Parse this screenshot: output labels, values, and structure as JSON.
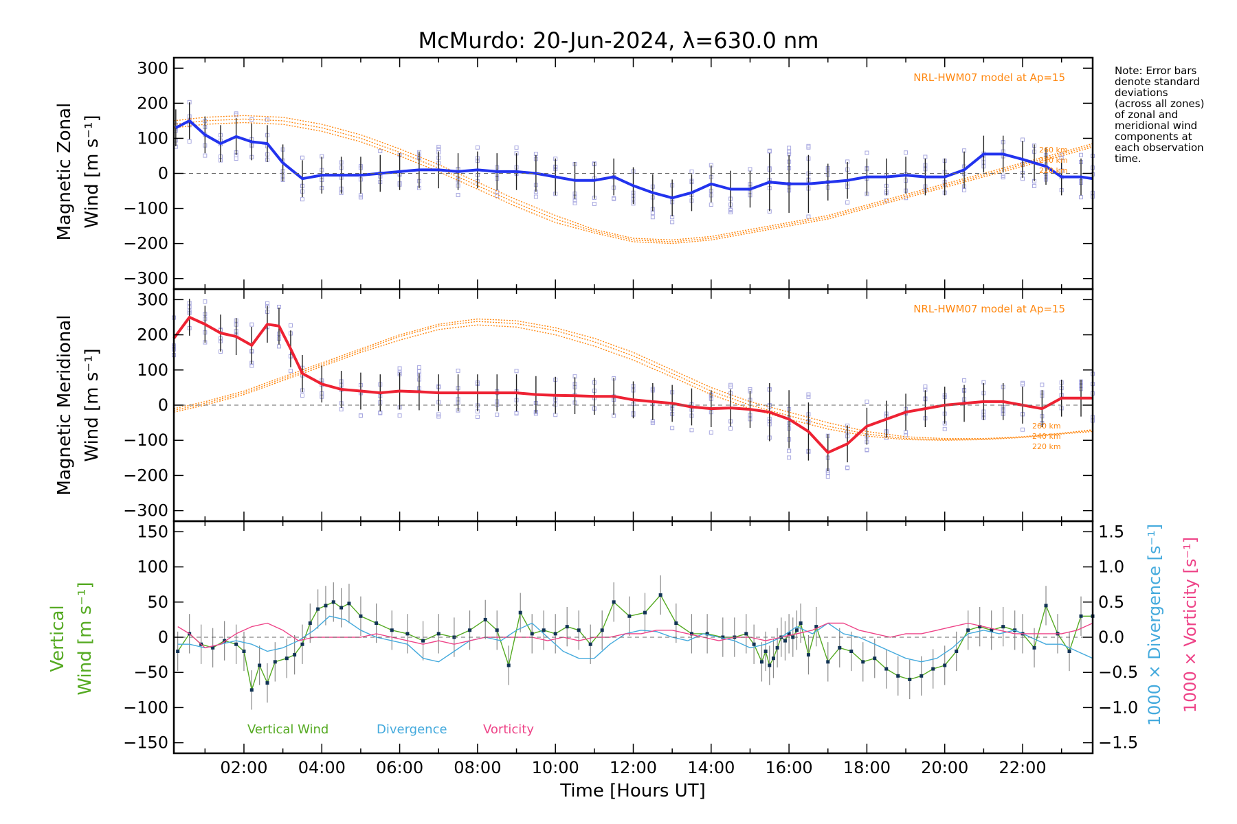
{
  "title": "McMurdo: 20-Jun-2024, λ=630.0 nm",
  "note": [
    "Note: Error bars",
    "denote standard",
    "deviations",
    "(across all zones)",
    "of zonal and",
    "meridional wind",
    "components at",
    "each observation",
    "time."
  ],
  "model_label": "NRL-HWM07 model at Ap=15",
  "model_altitudes": [
    "260 km",
    "240 km",
    "220 km"
  ],
  "xlabel": "Time [Hours UT]",
  "x_ticks": [
    "02:00",
    "04:00",
    "06:00",
    "08:00",
    "10:00",
    "12:00",
    "14:00",
    "16:00",
    "18:00",
    "20:00",
    "22:00"
  ],
  "colors": {
    "zonal": "#2233ee",
    "meridional": "#ee2233",
    "vertical": "#55aa22",
    "divergence": "#44aadd",
    "vorticity": "#ee4488",
    "model": "#ff8811",
    "scatter": "#a8a8e0",
    "errorbar": "#222222"
  },
  "chart_data": [
    {
      "type": "line",
      "panel": "zonal",
      "ylabel_line1": "Magnetic Zonal",
      "ylabel_line2": "Wind [m s⁻¹]",
      "ylim": [
        -330,
        330
      ],
      "xlim_hours": [
        0.2,
        23.8
      ],
      "y_ticks": [
        "300",
        "200",
        "100",
        "0",
        "−100",
        "−200",
        "−300"
      ],
      "series": [
        {
          "name": "Zonal",
          "x": [
            0.25,
            0.6,
            1.0,
            1.4,
            1.8,
            2.2,
            2.6,
            3.0,
            3.5,
            4.0,
            4.5,
            5.0,
            5.5,
            6.0,
            6.5,
            7.0,
            7.5,
            8.0,
            8.5,
            9.0,
            9.5,
            10.0,
            10.5,
            11.0,
            11.5,
            12.0,
            12.5,
            13.0,
            13.5,
            14.0,
            14.5,
            15.0,
            15.5,
            16.0,
            16.5,
            17.0,
            17.5,
            18.0,
            18.5,
            19.0,
            19.5,
            20.0,
            20.5,
            21.0,
            21.5,
            22.0,
            22.3,
            22.6,
            23.0,
            23.5,
            23.8
          ],
          "y": [
            130,
            150,
            110,
            85,
            105,
            90,
            85,
            30,
            -15,
            -5,
            -5,
            -5,
            0,
            5,
            10,
            10,
            5,
            10,
            5,
            5,
            0,
            -10,
            -20,
            -20,
            -10,
            -35,
            -55,
            -70,
            -55,
            -30,
            -45,
            -45,
            -25,
            -30,
            -30,
            -25,
            -20,
            -10,
            -10,
            -5,
            -10,
            -10,
            10,
            55,
            55,
            40,
            30,
            20,
            -10,
            -10,
            -15
          ]
        }
      ],
      "model_curves": [
        {
          "name": "260 km",
          "x": [
            0.2,
            1,
            2,
            3,
            4,
            5,
            6,
            7,
            8,
            9,
            10,
            11,
            12,
            13,
            14,
            15,
            16,
            17,
            18,
            19,
            20,
            21,
            22,
            23,
            23.8
          ],
          "y": [
            150,
            160,
            165,
            160,
            140,
            110,
            70,
            25,
            -25,
            -75,
            -120,
            -160,
            -185,
            -190,
            -180,
            -160,
            -140,
            -120,
            -90,
            -60,
            -30,
            0,
            30,
            60,
            85
          ]
        },
        {
          "name": "240 km",
          "x": [
            0.2,
            1,
            2,
            3,
            4,
            5,
            6,
            7,
            8,
            9,
            10,
            11,
            12,
            13,
            14,
            15,
            16,
            17,
            18,
            19,
            20,
            21,
            22,
            23,
            23.8
          ],
          "y": [
            140,
            150,
            155,
            150,
            130,
            100,
            60,
            15,
            -35,
            -85,
            -130,
            -165,
            -190,
            -195,
            -185,
            -165,
            -145,
            -125,
            -95,
            -65,
            -35,
            -5,
            25,
            55,
            80
          ]
        },
        {
          "name": "220 km",
          "x": [
            0.2,
            1,
            2,
            3,
            4,
            5,
            6,
            7,
            8,
            9,
            10,
            11,
            12,
            13,
            14,
            15,
            16,
            17,
            18,
            19,
            20,
            21,
            22,
            23,
            23.8
          ],
          "y": [
            130,
            140,
            145,
            140,
            120,
            90,
            50,
            5,
            -45,
            -95,
            -140,
            -170,
            -195,
            -200,
            -190,
            -170,
            -150,
            -130,
            -100,
            -70,
            -40,
            -10,
            20,
            50,
            75
          ]
        }
      ]
    },
    {
      "type": "line",
      "panel": "meridional",
      "ylabel_line1": "Magnetic Meridional",
      "ylabel_line2": "Wind [m s⁻¹]",
      "ylim": [
        -330,
        330
      ],
      "xlim_hours": [
        0.2,
        23.8
      ],
      "y_ticks": [
        "300",
        "200",
        "100",
        "0",
        "−100",
        "−200",
        "−300"
      ],
      "series": [
        {
          "name": "Meridional",
          "x": [
            0.2,
            0.6,
            1.0,
            1.4,
            1.8,
            2.2,
            2.6,
            2.9,
            3.2,
            3.5,
            4.0,
            4.5,
            5.0,
            5.5,
            6.0,
            6.5,
            7.0,
            7.5,
            8.0,
            8.5,
            9.0,
            9.5,
            10.0,
            10.5,
            11.0,
            11.5,
            12.0,
            12.5,
            13.0,
            13.5,
            14.0,
            14.5,
            15.0,
            15.5,
            16.0,
            16.5,
            17.0,
            17.5,
            18.0,
            18.5,
            19.0,
            19.5,
            20.0,
            20.5,
            21.0,
            21.5,
            22.0,
            22.5,
            23.0,
            23.5,
            23.8
          ],
          "y": [
            190,
            250,
            230,
            205,
            195,
            170,
            230,
            225,
            160,
            90,
            60,
            45,
            40,
            35,
            40,
            38,
            35,
            35,
            35,
            35,
            35,
            30,
            28,
            27,
            25,
            25,
            15,
            10,
            5,
            -5,
            -10,
            -8,
            -12,
            -20,
            -40,
            -75,
            -135,
            -110,
            -60,
            -40,
            -20,
            -10,
            0,
            5,
            10,
            10,
            0,
            -10,
            20,
            20,
            20
          ]
        }
      ],
      "model_curves": [
        {
          "name": "260 km",
          "x": [
            0.2,
            1,
            2,
            3,
            4,
            5,
            6,
            7,
            8,
            9,
            10,
            11,
            12,
            13,
            14,
            15,
            16,
            17,
            18,
            19,
            20,
            21,
            22,
            23,
            23.8
          ],
          "y": [
            -10,
            10,
            40,
            80,
            120,
            160,
            200,
            230,
            245,
            240,
            220,
            190,
            150,
            100,
            50,
            10,
            -20,
            -50,
            -75,
            -90,
            -95,
            -95,
            -90,
            -80,
            -70
          ]
        },
        {
          "name": "240 km",
          "x": [
            0.2,
            1,
            2,
            3,
            4,
            5,
            6,
            7,
            8,
            9,
            10,
            11,
            12,
            13,
            14,
            15,
            16,
            17,
            18,
            19,
            20,
            21,
            22,
            23,
            23.8
          ],
          "y": [
            -15,
            5,
            35,
            75,
            115,
            155,
            195,
            225,
            238,
            232,
            212,
            180,
            140,
            90,
            40,
            0,
            -30,
            -60,
            -82,
            -95,
            -98,
            -96,
            -90,
            -80,
            -72
          ]
        },
        {
          "name": "220 km",
          "x": [
            0.2,
            1,
            2,
            3,
            4,
            5,
            6,
            7,
            8,
            9,
            10,
            11,
            12,
            13,
            14,
            15,
            16,
            17,
            18,
            19,
            20,
            21,
            22,
            23,
            23.8
          ],
          "y": [
            -20,
            0,
            30,
            70,
            110,
            150,
            185,
            215,
            228,
            222,
            200,
            168,
            128,
            80,
            30,
            -10,
            -40,
            -68,
            -88,
            -98,
            -100,
            -98,
            -92,
            -82,
            -75
          ]
        }
      ]
    },
    {
      "type": "line",
      "panel": "vertical",
      "ylabel_line1": "Vertical",
      "ylabel_line2": "Wind [m s⁻¹]",
      "ylim": [
        -165,
        165
      ],
      "xlim_hours": [
        0.2,
        23.8
      ],
      "y_ticks": [
        "150",
        "100",
        "50",
        "0",
        "−50",
        "−100",
        "−150"
      ],
      "right_axis": {
        "ylim": [
          -1.65,
          1.65
        ],
        "ticks": [
          "1.5",
          "1.0",
          "0.5",
          "0.0",
          "−0.5",
          "−1.0",
          "−1.5"
        ],
        "label_divergence": "1000 × Divergence [s⁻¹]",
        "label_vorticity": "1000 × Vorticity [s⁻¹]"
      },
      "legend": [
        "Vertical Wind",
        "Divergence",
        "Vorticity"
      ],
      "series": [
        {
          "name": "Vertical Wind",
          "x": [
            0.3,
            0.6,
            0.9,
            1.2,
            1.5,
            1.8,
            2.0,
            2.2,
            2.4,
            2.6,
            2.8,
            3.1,
            3.3,
            3.5,
            3.7,
            3.9,
            4.1,
            4.3,
            4.5,
            4.7,
            5.0,
            5.4,
            5.8,
            6.2,
            6.6,
            7.0,
            7.4,
            7.8,
            8.2,
            8.5,
            8.8,
            9.1,
            9.4,
            9.7,
            10.0,
            10.3,
            10.6,
            10.9,
            11.2,
            11.5,
            11.9,
            12.3,
            12.7,
            13.1,
            13.5,
            13.9,
            14.3,
            14.6,
            14.9,
            15.1,
            15.3,
            15.4,
            15.5,
            15.6,
            15.7,
            15.8,
            15.9,
            16.0,
            16.1,
            16.2,
            16.3,
            16.5,
            16.7,
            17.0,
            17.3,
            17.6,
            17.9,
            18.2,
            18.5,
            18.8,
            19.1,
            19.4,
            19.7,
            20.0,
            20.3,
            20.6,
            20.9,
            21.2,
            21.5,
            21.8,
            22.0,
            22.3,
            22.6,
            22.9,
            23.2,
            23.5,
            23.8
          ],
          "y": [
            -20,
            5,
            -10,
            -15,
            -5,
            -10,
            -20,
            -75,
            -40,
            -65,
            -35,
            -30,
            -25,
            -10,
            20,
            40,
            45,
            50,
            42,
            48,
            30,
            20,
            10,
            5,
            -5,
            5,
            0,
            10,
            25,
            10,
            -40,
            35,
            5,
            10,
            5,
            15,
            10,
            -10,
            10,
            50,
            30,
            35,
            60,
            20,
            5,
            5,
            0,
            0,
            5,
            -10,
            -35,
            -20,
            -40,
            -30,
            -15,
            0,
            -5,
            5,
            0,
            10,
            20,
            -25,
            15,
            -35,
            -15,
            -20,
            -35,
            -30,
            -45,
            -55,
            -60,
            -55,
            -45,
            -40,
            -20,
            10,
            15,
            10,
            15,
            10,
            5,
            -15,
            45,
            5,
            -20,
            30,
            30
          ]
        },
        {
          "name": "Divergence",
          "x": [
            0.3,
            0.6,
            1.0,
            1.4,
            1.8,
            2.2,
            2.6,
            3.0,
            3.4,
            3.8,
            4.2,
            4.6,
            5.0,
            5.4,
            5.8,
            6.2,
            6.6,
            7.0,
            7.4,
            7.8,
            8.2,
            8.6,
            9.0,
            9.4,
            9.8,
            10.2,
            10.6,
            11.0,
            11.4,
            11.8,
            12.2,
            12.6,
            13.0,
            13.4,
            13.8,
            14.2,
            14.6,
            15.0,
            15.4,
            15.8,
            16.2,
            16.6,
            17.0,
            17.4,
            17.8,
            18.2,
            18.6,
            19.0,
            19.4,
            19.8,
            20.2,
            20.6,
            21.0,
            21.4,
            21.8,
            22.2,
            22.6,
            23.0,
            23.4,
            23.8
          ],
          "y": [
            -0.1,
            -0.1,
            -0.15,
            -0.1,
            -0.05,
            -0.1,
            -0.2,
            -0.15,
            -0.05,
            0.1,
            0.3,
            0.25,
            0.1,
            0.0,
            -0.05,
            -0.1,
            -0.3,
            -0.35,
            -0.2,
            -0.05,
            0.0,
            -0.05,
            0.1,
            0.2,
            0.0,
            -0.2,
            -0.3,
            -0.3,
            -0.1,
            0.05,
            0.1,
            0.08,
            0.0,
            -0.05,
            0.05,
            0.0,
            -0.05,
            -0.15,
            -0.1,
            0.0,
            0.15,
            0.05,
            0.2,
            0.05,
            0.0,
            -0.1,
            -0.2,
            -0.3,
            -0.35,
            -0.3,
            -0.15,
            0.05,
            0.1,
            0.05,
            0.1,
            0.0,
            -0.1,
            -0.1,
            -0.2,
            -0.3
          ]
        },
        {
          "name": "Vorticity",
          "x": [
            0.3,
            0.6,
            1.0,
            1.4,
            1.8,
            2.2,
            2.6,
            3.0,
            3.4,
            3.8,
            4.2,
            4.6,
            5.0,
            5.4,
            5.8,
            6.2,
            6.6,
            7.0,
            7.4,
            7.8,
            8.2,
            8.6,
            9.0,
            9.4,
            9.8,
            10.2,
            10.6,
            11.0,
            11.4,
            11.8,
            12.2,
            12.6,
            13.0,
            13.4,
            13.8,
            14.2,
            14.6,
            15.0,
            15.4,
            15.8,
            16.2,
            16.6,
            17.0,
            17.4,
            17.8,
            18.2,
            18.6,
            19.0,
            19.4,
            19.8,
            20.2,
            20.6,
            21.0,
            21.4,
            21.8,
            22.2,
            22.6,
            23.0,
            23.4,
            23.8
          ],
          "y": [
            0.15,
            0.05,
            -0.15,
            -0.1,
            0.05,
            0.15,
            0.2,
            0.1,
            -0.05,
            0.0,
            0.0,
            0.0,
            0.0,
            0.05,
            0.0,
            -0.05,
            -0.1,
            -0.05,
            -0.1,
            -0.05,
            0.0,
            0.0,
            0.0,
            0.0,
            -0.05,
            0.0,
            -0.05,
            0.0,
            0.0,
            0.05,
            0.05,
            0.1,
            0.1,
            0.05,
            0.0,
            -0.05,
            0.0,
            0.0,
            -0.05,
            0.0,
            0.05,
            0.1,
            0.2,
            0.2,
            0.1,
            0.05,
            0.0,
            0.05,
            0.05,
            0.1,
            0.15,
            0.2,
            0.15,
            0.1,
            0.05,
            0.05,
            0.05,
            0.05,
            0.1,
            0.2
          ]
        }
      ]
    }
  ]
}
